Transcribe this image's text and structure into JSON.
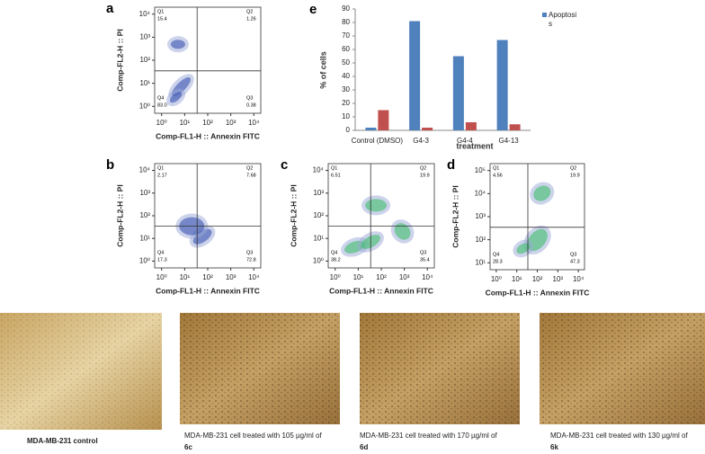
{
  "flow_panels": [
    {
      "letter": "a",
      "xlabel": "Comp-FL1-H :: Annexin FITC",
      "ylabel": "Comp-FL2-H :: PI",
      "xlim": [
        0.5,
        20000
      ],
      "ylim": [
        0.5,
        20000
      ],
      "xticks": [
        {
          "value": 1,
          "label": "10⁰"
        },
        {
          "value": 10,
          "label": "10¹"
        },
        {
          "value": 100,
          "label": "10²"
        },
        {
          "value": 1000,
          "label": "10³"
        },
        {
          "value": 10000,
          "label": "10⁴"
        }
      ],
      "yticks": [
        {
          "value": 1,
          "label": "10⁰"
        },
        {
          "value": 10,
          "label": "10¹"
        },
        {
          "value": 100,
          "label": "10²"
        },
        {
          "value": 1000,
          "label": "10³"
        },
        {
          "value": 10000,
          "label": "10⁴"
        }
      ],
      "quadrants": [
        {
          "name": "Q1",
          "value": "15.4"
        },
        {
          "name": "Q2",
          "value": "1.26"
        },
        {
          "name": "Q3",
          "value": "0.38"
        },
        {
          "name": "Q4",
          "value": "83.0"
        }
      ]
    },
    {
      "letter": "b",
      "xlabel": "Comp-FL1-H :: Annexin FITC",
      "ylabel": "Comp-FL2-H :: PI",
      "xlim": [
        0.5,
        20000
      ],
      "ylim": [
        0.5,
        20000
      ],
      "xticks": [
        {
          "value": 1,
          "label": "10⁰"
        },
        {
          "value": 10,
          "label": "10¹"
        },
        {
          "value": 100,
          "label": "10²"
        },
        {
          "value": 1000,
          "label": "10³"
        },
        {
          "value": 10000,
          "label": "10⁴"
        }
      ],
      "yticks": [
        {
          "value": 1,
          "label": "10⁰"
        },
        {
          "value": 10,
          "label": "10¹"
        },
        {
          "value": 100,
          "label": "10²"
        },
        {
          "value": 1000,
          "label": "10³"
        },
        {
          "value": 10000,
          "label": "10⁴"
        }
      ],
      "quadrants": [
        {
          "name": "Q1",
          "value": "2.17"
        },
        {
          "name": "Q2",
          "value": "7.68"
        },
        {
          "name": "Q3",
          "value": "72.8"
        },
        {
          "name": "Q4",
          "value": "17.3"
        }
      ]
    },
    {
      "letter": "c",
      "xlabel": "Comp-FL1-H :: Annexin FITC",
      "ylabel": "Comp-FL2-H :: PI",
      "xlim": [
        0.5,
        20000
      ],
      "ylim": [
        0.5,
        20000
      ],
      "xticks": [
        {
          "value": 1,
          "label": "10⁰"
        },
        {
          "value": 10,
          "label": "10¹"
        },
        {
          "value": 100,
          "label": "10²"
        },
        {
          "value": 1000,
          "label": "10³"
        },
        {
          "value": 10000,
          "label": "10⁴"
        }
      ],
      "yticks": [
        {
          "value": 1,
          "label": "10⁰"
        },
        {
          "value": 10,
          "label": "10¹"
        },
        {
          "value": 100,
          "label": "10²"
        },
        {
          "value": 1000,
          "label": "10³"
        },
        {
          "value": 10000,
          "label": "10⁴"
        }
      ],
      "quadrants": [
        {
          "name": "Q1",
          "value": "6.51"
        },
        {
          "name": "Q2",
          "value": "19.9"
        },
        {
          "name": "Q3",
          "value": "35.4"
        },
        {
          "name": "Q4",
          "value": "38.2"
        }
      ]
    },
    {
      "letter": "d",
      "xlabel": "Comp-FL1-H :: Annexin FITC",
      "ylabel": "Comp-FL2-H :: PI",
      "xlim": [
        0.5,
        20000
      ],
      "ylim": [
        5,
        200000
      ],
      "xticks": [
        {
          "value": 1,
          "label": "10⁰"
        },
        {
          "value": 10,
          "label": "10¹"
        },
        {
          "value": 100,
          "label": "10²"
        },
        {
          "value": 1000,
          "label": "10³"
        },
        {
          "value": 10000,
          "label": "10⁴"
        }
      ],
      "yticks": [
        {
          "value": 10,
          "label": "10¹"
        },
        {
          "value": 100,
          "label": "10²"
        },
        {
          "value": 1000,
          "label": "10³"
        },
        {
          "value": 10000,
          "label": "10⁴"
        },
        {
          "value": 100000,
          "label": "10⁵"
        }
      ],
      "quadrants": [
        {
          "name": "Q1",
          "value": "4.56"
        },
        {
          "name": "Q2",
          "value": "19.9"
        },
        {
          "name": "Q3",
          "value": "47.3"
        },
        {
          "name": "Q4",
          "value": "28.3"
        }
      ]
    }
  ],
  "chart_data": {
    "type": "bar",
    "letter": "e",
    "xlabel": "treatment",
    "ylabel": "% of cells",
    "categories": [
      "Control (DMSO)",
      "G4-3",
      "G4-4",
      "G4-13"
    ],
    "series": [
      {
        "name": "Apoptosis",
        "color": "#4f81bd",
        "values": [
          2,
          81,
          55,
          67
        ]
      },
      {
        "color": "#c0504d",
        "values": [
          15,
          2,
          6,
          4.5
        ]
      }
    ],
    "ylim": [
      0,
      90
    ],
    "yticks": [
      0,
      10,
      20,
      30,
      40,
      50,
      60,
      70,
      80,
      90
    ],
    "legend": "top-right"
  },
  "micrographs": [
    {
      "caption": "MDA-MB-231 control"
    },
    {
      "caption": "MDA-MB-231 cell treated with 105 µg/ml of",
      "compound": "6c"
    },
    {
      "caption": "MDA-MB-231 cell treated with 170 µg/ml of",
      "compound": "6d"
    },
    {
      "caption": "MDA-MB-231 cell treated with 130 µg/ml of",
      "compound": "6k"
    }
  ]
}
